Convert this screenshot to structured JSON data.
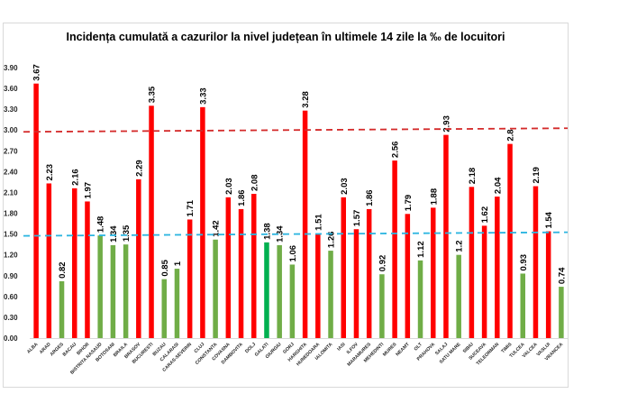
{
  "chart_data": {
    "type": "bar",
    "title": "Incidența cumulată a cazurilor la nivel județean în ultimele 14 zile la ‰ de locuitori",
    "xlabel": "",
    "ylabel": "",
    "ylim": [
      0,
      3.9
    ],
    "grid": false,
    "legend": "none",
    "yticks": [
      "0.00",
      "0.30",
      "0.60",
      "0.90",
      "1.20",
      "1.50",
      "1.80",
      "2.10",
      "2.40",
      "2.70",
      "3.00",
      "3.30",
      "3.60",
      "3.90"
    ],
    "categories": [
      "ALBA",
      "ARAD",
      "ARGES",
      "BACAU",
      "BIHOR",
      "BISTRITA NASAUD",
      "BOTOSANI",
      "BRAILA",
      "BRASOV",
      "BUCURESTI",
      "BUZAU",
      "CALARASI",
      "CARAS-SEVERIN",
      "CLUJ",
      "CONSTANTA",
      "COVASNA",
      "DAMBOVITA",
      "DOLJ",
      "GALATI",
      "GIURGIU",
      "GORJ",
      "HARGHITA",
      "HUNEDOARA",
      "IALOMITA",
      "IASI",
      "ILFOV",
      "MARAMURES",
      "MEHEDINTI",
      "MURES",
      "NEAMT",
      "OLT",
      "PRAHOVA",
      "SALAJ",
      "SATU MARE",
      "SIBIU",
      "SUCEAVA",
      "TELEORMAN",
      "TIMIS",
      "TULCEA",
      "VALCEA",
      "VASLUI",
      "VRANCEA"
    ],
    "values": [
      3.67,
      2.23,
      0.82,
      2.16,
      1.97,
      1.48,
      1.34,
      1.35,
      2.29,
      3.35,
      0.85,
      1,
      1.71,
      3.33,
      1.42,
      2.03,
      1.86,
      2.08,
      1.38,
      1.34,
      1.06,
      3.28,
      1.51,
      1.26,
      2.03,
      1.57,
      1.86,
      0.92,
      2.56,
      1.79,
      1.12,
      1.88,
      2.93,
      1.2,
      2.18,
      1.62,
      2.04,
      2.8,
      0.93,
      2.19,
      1.54,
      0.74
    ],
    "data_labels": [
      "3.67",
      "2.23",
      "0.82",
      "2.16",
      "1.97",
      "1.48",
      "1.34",
      "1.35",
      "2.29",
      "3.35",
      "0.85",
      "1",
      "1.71",
      "3.33",
      "1.42",
      "2.03",
      "1.86",
      "2.08",
      "1.38",
      "1.34",
      "1.06",
      "3.28",
      "1.51",
      "1.26",
      "2.03",
      "1.57",
      "1.86",
      "0.92",
      "2.56",
      "1.79",
      "1.12",
      "1.88",
      "2.93",
      "1.2",
      "2.18",
      "1.62",
      "2.04",
      "2.8",
      "0.93",
      "2.19",
      "1.54",
      "0.74"
    ],
    "bar_colors": [
      "red",
      "red",
      "green",
      "red",
      "red",
      "green",
      "green",
      "green",
      "red",
      "red",
      "green",
      "green",
      "red",
      "red",
      "green",
      "red",
      "red",
      "red",
      "darkgreen",
      "green",
      "green",
      "red",
      "red",
      "green",
      "red",
      "red",
      "red",
      "green",
      "red",
      "red",
      "green",
      "red",
      "red",
      "green",
      "red",
      "red",
      "red",
      "red",
      "green",
      "red",
      "red",
      "green"
    ],
    "reference_lines": [
      {
        "name": "threshold-high",
        "value": 3.0,
        "color": "#d42a2a",
        "style": "dashed"
      },
      {
        "name": "threshold-low",
        "value": 1.5,
        "color": "#2cb5e0",
        "style": "dashed"
      }
    ]
  },
  "colors": {
    "red": "#ff0000",
    "green": "#70ad47",
    "darkgreen": "#00b050",
    "axis": "#d9d9d9"
  }
}
